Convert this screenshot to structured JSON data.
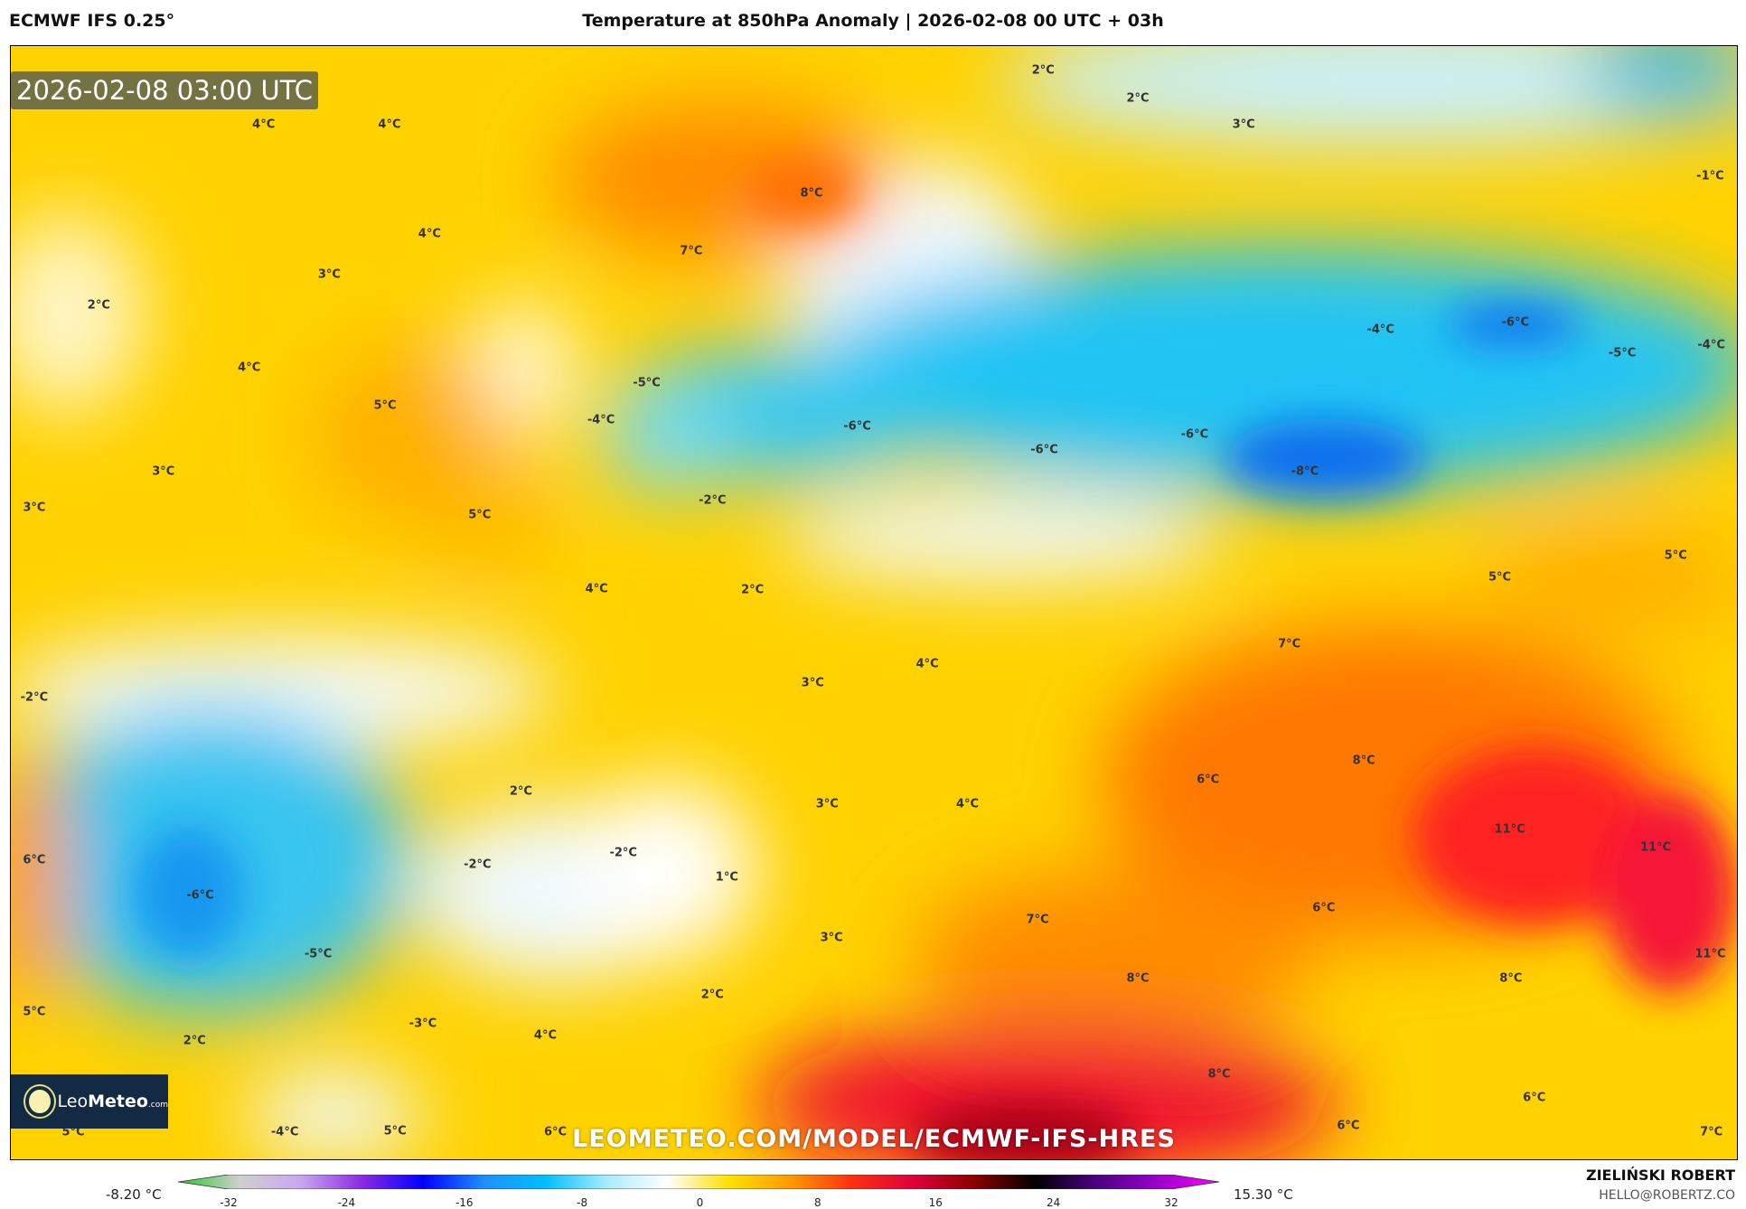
{
  "header": {
    "model": "ECMWF IFS 0.25°",
    "title": "Temperature at 850hPa Anomaly | 2026-02-08 00 UTC + 03h"
  },
  "map": {
    "valid_time": "2026-02-08 03:00 UTC",
    "watermark": "LEOMETEO.COM/MODEL/ECMWF-IFS-HRES",
    "logo": {
      "part1": "Leo",
      "part2": "Meteo",
      ".com": ".com"
    },
    "labels": [
      "4°C",
      "4°C",
      "4°C",
      "3°C",
      "2°C",
      "4°C",
      "5°C",
      "3°C",
      "3°C",
      "5°C",
      "8°C",
      "7°C",
      "2°C",
      "2°C",
      "3°C",
      "-1°C",
      "-4°C",
      "-6°C",
      "-5°C",
      "-4°C",
      "-5°C",
      "-4°C",
      "-6°C",
      "-6°C",
      "-6°C",
      "-8°C",
      "-2°C",
      "4°C",
      "2°C",
      "5°C",
      "5°C",
      "7°C",
      "4°C",
      "3°C",
      "-2°C",
      "8°C",
      "6°C",
      "2°C",
      "3°C",
      "4°C",
      "11°C",
      "11°C",
      "6°C",
      "-2°C",
      "-2°C",
      "1°C",
      "-6°C",
      "6°C",
      "7°C",
      "3°C",
      "-5°C",
      "11°C",
      "8°C",
      "8°C",
      "2°C",
      "5°C",
      "-3°C",
      "2°C",
      "4°C",
      "8°C",
      "6°C",
      "6°C",
      "7°C",
      "5°C",
      "-4°C",
      "5°C",
      "6°C"
    ]
  },
  "colorbar": {
    "min_label": "-8.20 °C",
    "max_label": "15.30 °C",
    "range": [
      -32,
      32
    ],
    "ticks": [
      "-32",
      "-24",
      "-16",
      "-8",
      "0",
      "8",
      "16",
      "24",
      "32"
    ],
    "colors": [
      "#22cc22",
      "#cfcfcf",
      "#c8a8f0",
      "#8a2be2",
      "#0000ff",
      "#1e90ff",
      "#00bfff",
      "#a8ecff",
      "#ffffff",
      "#ffe000",
      "#ff9a00",
      "#ff3010",
      "#e0003a",
      "#8b0000",
      "#000000",
      "#4b0082",
      "#9900cc",
      "#ff00ff"
    ]
  },
  "credits": {
    "author": "ZIELIŃSKI ROBERT",
    "email": "HELLO@ROBERTZ.CO"
  }
}
